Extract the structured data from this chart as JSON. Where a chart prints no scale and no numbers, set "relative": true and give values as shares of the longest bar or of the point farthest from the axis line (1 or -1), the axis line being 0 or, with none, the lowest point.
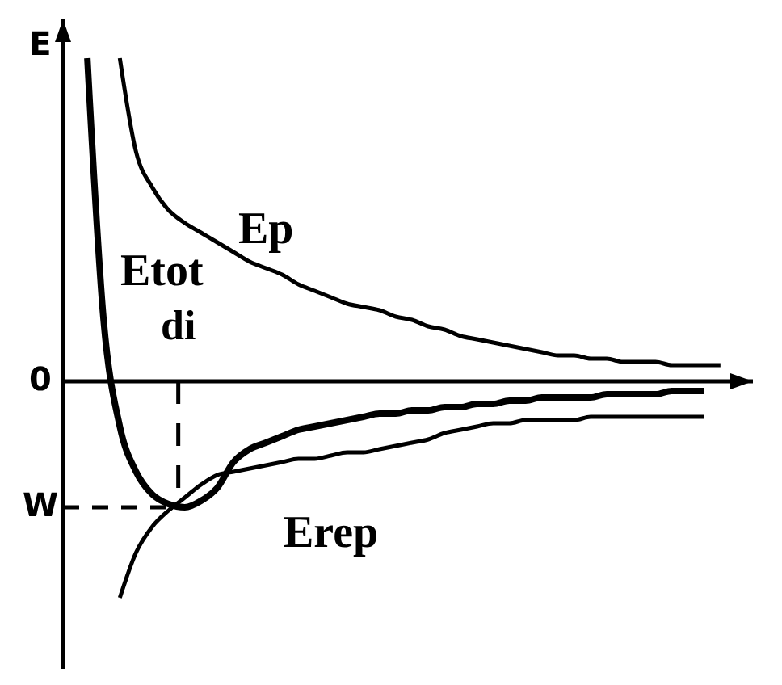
{
  "chart_data": {
    "type": "line",
    "relative": true,
    "ylabel": "E",
    "marker": "none",
    "categories": [
      null,
      null,
      null,
      null,
      null,
      null,
      null,
      null,
      null,
      null,
      null,
      null,
      null,
      null,
      null,
      null,
      null,
      null,
      null,
      null,
      null,
      null,
      null,
      null,
      null,
      null,
      null,
      null,
      null,
      null,
      null,
      null,
      null,
      null,
      null,
      null,
      null,
      null,
      null,
      null
    ],
    "series": [
      {
        "name": "Ep",
        "color": "#000000",
        "values": [
          null,
          null,
          1.0,
          0.71,
          0.6,
          0.53,
          0.49,
          0.46,
          0.43,
          0.4,
          0.37,
          0.35,
          0.33,
          0.3,
          0.28,
          0.26,
          0.24,
          0.23,
          0.22,
          0.2,
          0.19,
          0.17,
          0.16,
          0.14,
          0.13,
          0.12,
          0.11,
          0.1,
          0.09,
          0.08,
          0.08,
          0.07,
          0.07,
          0.06,
          0.06,
          0.06,
          0.05,
          0.05,
          0.05,
          0.05
        ]
      },
      {
        "name": "Etot",
        "color": "#000000",
        "values": [
          1.0,
          0.19,
          -0.14,
          -0.28,
          -0.35,
          -0.38,
          -0.39,
          -0.37,
          -0.33,
          -0.25,
          -0.21,
          -0.19,
          -0.17,
          -0.15,
          -0.14,
          -0.13,
          -0.12,
          -0.11,
          -0.1,
          -0.1,
          -0.09,
          -0.09,
          -0.08,
          -0.08,
          -0.07,
          -0.07,
          -0.06,
          -0.06,
          -0.05,
          -0.05,
          -0.05,
          -0.05,
          -0.04,
          -0.04,
          -0.04,
          -0.04,
          -0.03,
          -0.03,
          -0.03,
          null
        ]
      },
      {
        "name": "Erep",
        "color": "#000000",
        "values": [
          null,
          null,
          -0.67,
          -0.53,
          -0.45,
          -0.4,
          -0.36,
          -0.32,
          -0.29,
          -0.28,
          -0.27,
          -0.26,
          -0.25,
          -0.24,
          -0.24,
          -0.23,
          -0.22,
          -0.22,
          -0.21,
          -0.2,
          -0.19,
          -0.18,
          -0.16,
          -0.15,
          -0.14,
          -0.13,
          -0.13,
          -0.12,
          -0.12,
          -0.12,
          -0.12,
          -0.11,
          -0.11,
          -0.11,
          -0.11,
          -0.11,
          -0.11,
          -0.11,
          -0.11,
          null
        ]
      }
    ],
    "ref_lines": [
      {
        "axis": "y",
        "value": -0.39,
        "label": "W",
        "line_style": "dashed",
        "color": "#000000"
      }
    ],
    "annotations": [
      "0",
      {
        "text": "di",
        "y": -0.39
      }
    ]
  }
}
